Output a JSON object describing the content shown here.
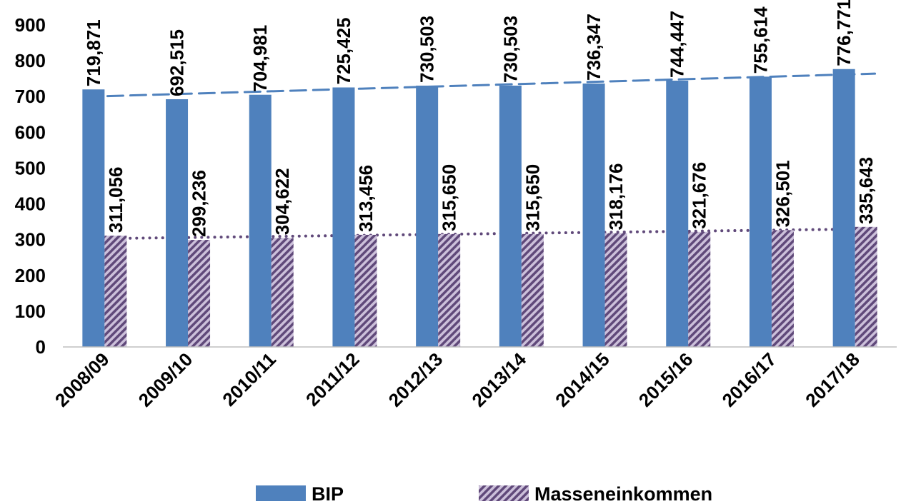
{
  "chart_data": {
    "type": "bar",
    "categories": [
      "2008/09",
      "2009/10",
      "2010/11",
      "2011/12",
      "2012/13",
      "2013/14",
      "2014/15",
      "2015/16",
      "2016/17",
      "2017/18"
    ],
    "series": [
      {
        "name": "BIP",
        "values": [
          719.871,
          692.515,
          704.981,
          725.425,
          730.503,
          730.503,
          736.347,
          744.447,
          755.614,
          776.771
        ],
        "labels": [
          "719,871",
          "692,515",
          "704,981",
          "725,425",
          "730,503",
          "730,503",
          "736,347",
          "744,447",
          "755,614",
          "776,771"
        ],
        "color": "#4f81bd",
        "pattern": "solid",
        "trendline": {
          "type": "linear",
          "style": "dashed",
          "color": "#4f81bd"
        }
      },
      {
        "name": "Masseneinkommen",
        "values": [
          311.056,
          299.236,
          304.622,
          313.456,
          315.65,
          315.65,
          318.176,
          321.676,
          326.501,
          335.643
        ],
        "labels": [
          "311,056",
          "299,236",
          "304,622",
          "313,456",
          "315,650",
          "315,650",
          "318,176",
          "321,676",
          "326,501",
          "335,643"
        ],
        "color": "#ccc0da",
        "stripe_color": "#60497a",
        "pattern": "diagonal-stripes",
        "trendline": {
          "type": "linear",
          "style": "dotted",
          "color": "#60497a"
        }
      }
    ],
    "yticks": [
      "0",
      "100",
      "200",
      "300",
      "400",
      "500",
      "600",
      "700",
      "800",
      "900"
    ],
    "ylim": [
      0,
      900
    ],
    "grid": false,
    "legend_position": "bottom",
    "data_label_rotation": "vertical"
  }
}
